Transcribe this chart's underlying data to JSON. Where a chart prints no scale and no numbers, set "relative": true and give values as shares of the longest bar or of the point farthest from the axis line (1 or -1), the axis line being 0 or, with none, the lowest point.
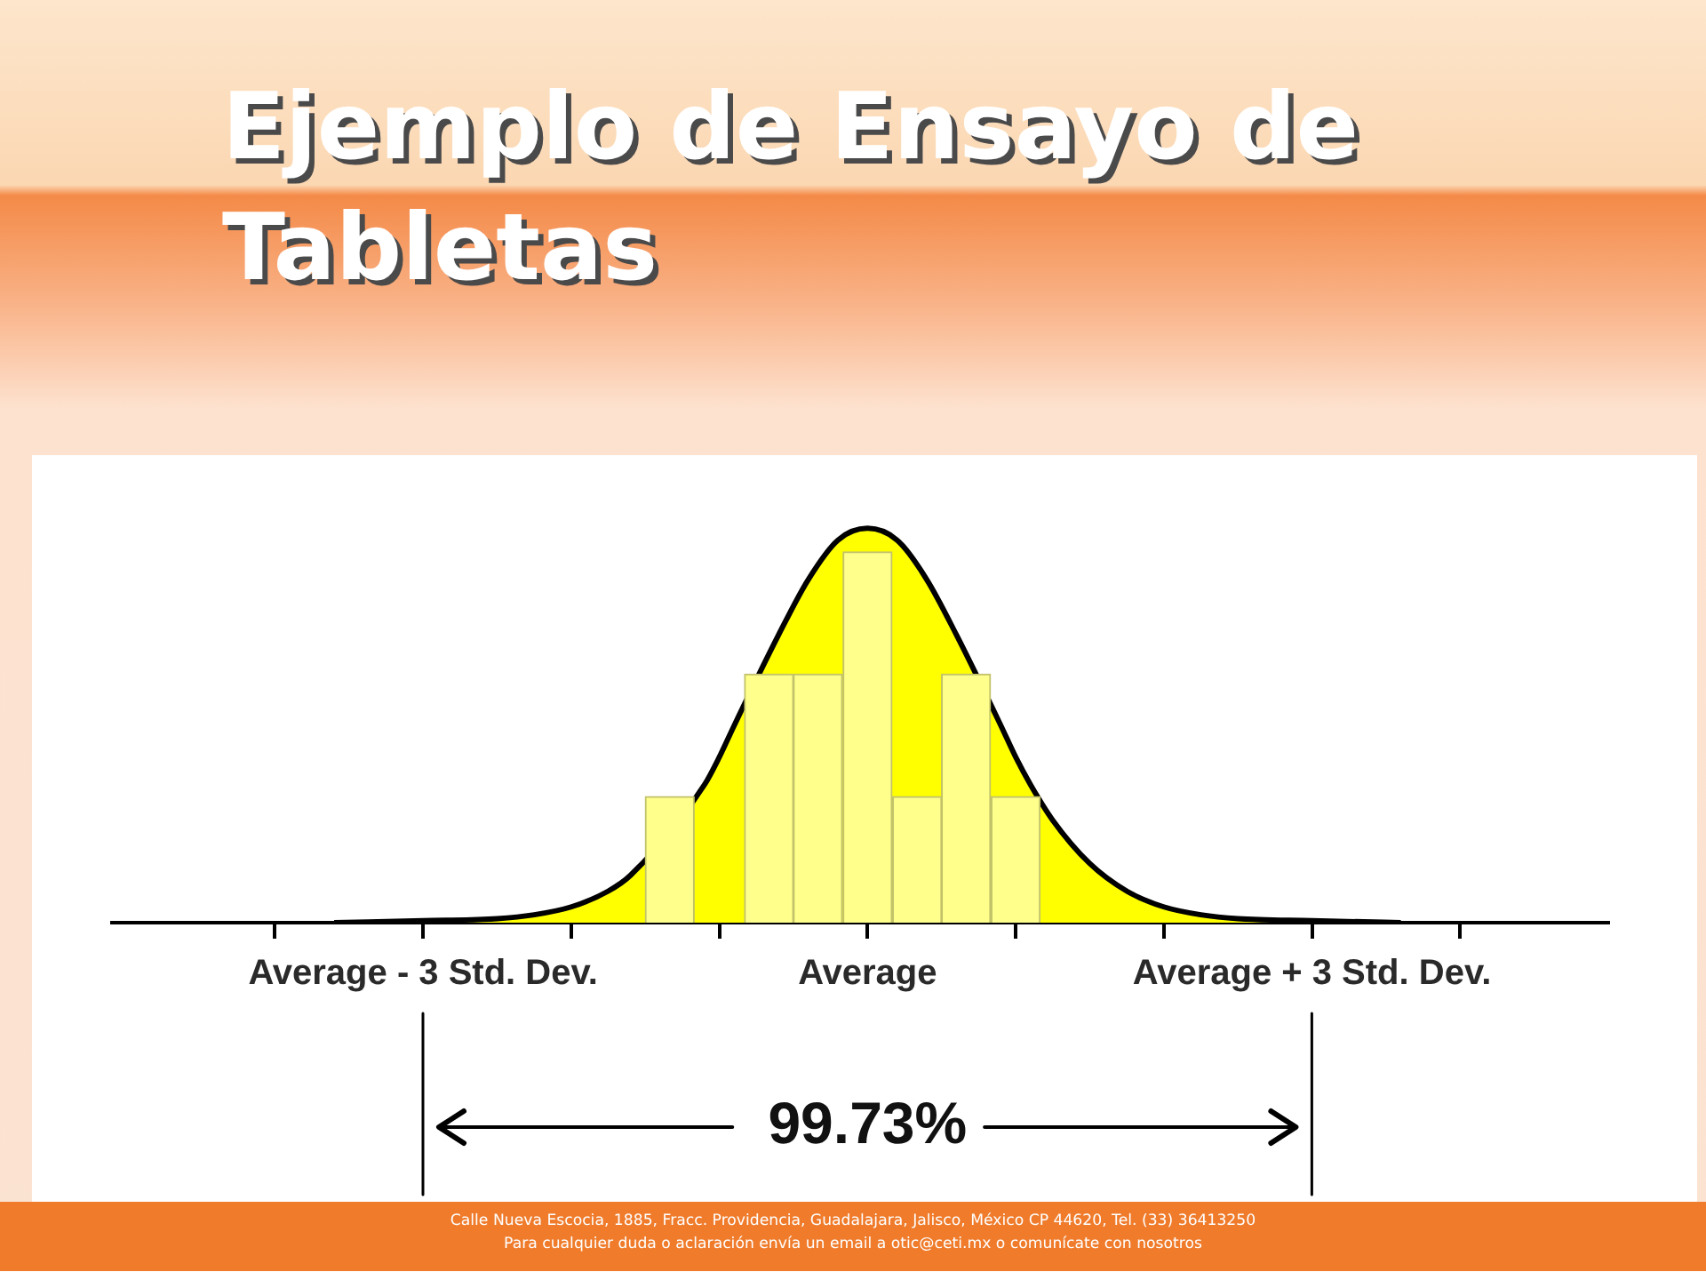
{
  "chart_data": {
    "type": "histogram",
    "title": "Ejemplo de Ensayo de Tabletas",
    "relative": true,
    "xlim": [
      -5.1,
      5
    ],
    "xticks": [
      {
        "value": -4,
        "label": null
      },
      {
        "value": -3,
        "label": "Average - 3 Std. Dev."
      },
      {
        "value": -2,
        "label": null
      },
      {
        "value": -1,
        "label": null
      },
      {
        "value": 0,
        "label": "Average"
      },
      {
        "value": 1,
        "label": null
      },
      {
        "value": 2,
        "label": null
      },
      {
        "value": 3,
        "label": "Average + 3 Std. Dev."
      },
      {
        "value": 4,
        "label": null
      }
    ],
    "series": [
      {
        "type": "area",
        "color": "#ffff00",
        "x": [
          -3.6,
          -3,
          -2.5,
          -2.25,
          -2,
          -1.75,
          -1.6,
          -1.1,
          -1,
          -0.9,
          -0.6,
          -0.4,
          -0.2,
          0,
          0.2,
          0.4,
          0.6,
          0.9,
          1,
          1.1,
          1.25,
          1.5,
          1.75,
          2,
          2.25,
          2.5,
          3,
          3.6
        ],
        "values": [
          0,
          0.005,
          0.01,
          0.02,
          0.04,
          0.08,
          0.12,
          0.35,
          0.42,
          0.5,
          0.73,
          0.87,
          0.97,
          1,
          0.97,
          0.87,
          0.73,
          0.5,
          0.42,
          0.35,
          0.26,
          0.15,
          0.08,
          0.04,
          0.02,
          0.01,
          0.005,
          0
        ]
      },
      {
        "color": "#ffff8c",
        "bins": [
          -1.5,
          -1.17,
          -0.83,
          -0.5,
          -0.17,
          0.17,
          0.5,
          0.83,
          1.17
        ],
        "values": [
          0.32,
          0,
          0.63,
          0.63,
          0.94,
          0.32,
          0.63,
          0.32
        ]
      }
    ],
    "annotations": [
      "99.73%",
      "Calle Nueva Escocia, 1885, Fracc. Providencia, Guadalajara, Jalisco, México CP 44620, Tel. (33) 36413250",
      "Para cualquier duda o aclaración envía un email a otic@ceti.mx o comunícate con nosotros"
    ]
  }
}
